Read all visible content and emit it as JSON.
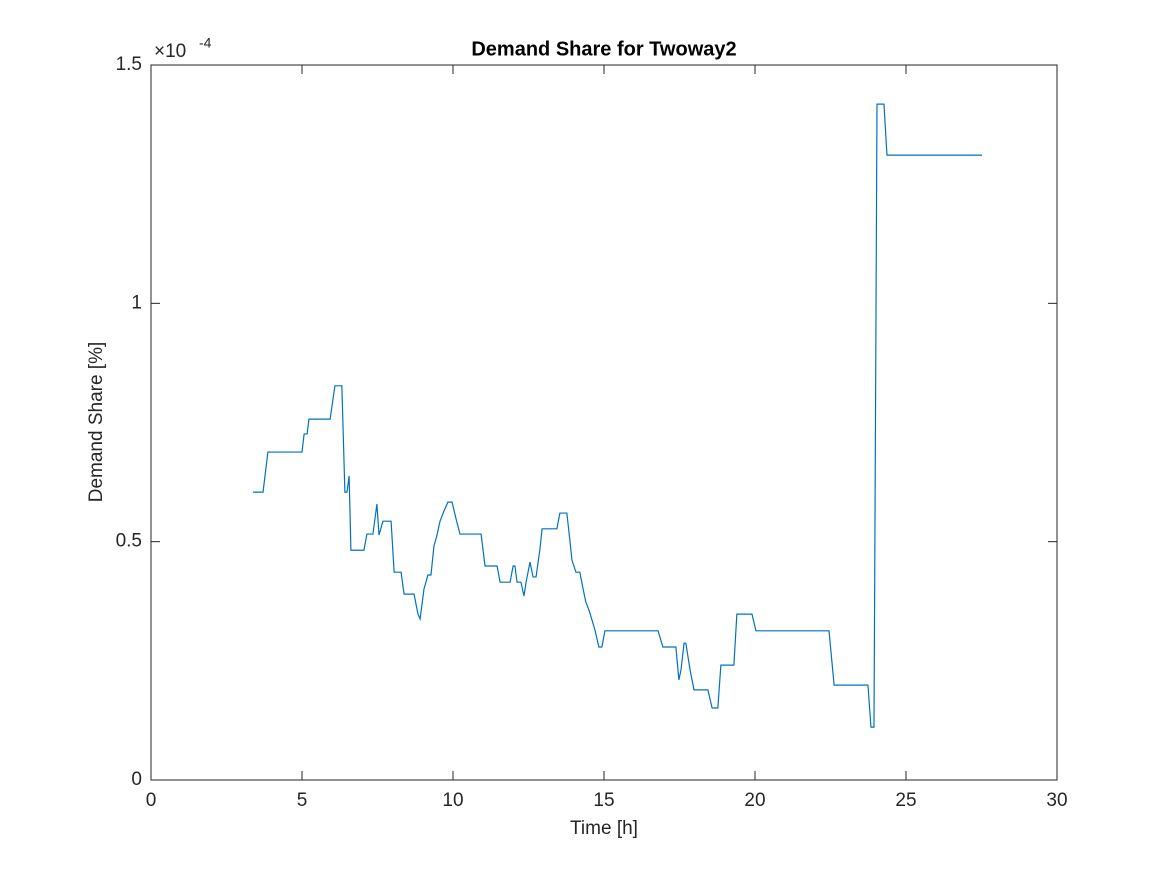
{
  "chart_data": {
    "type": "line",
    "title": "Demand Share for Twoway2",
    "x_label": "Time [h]",
    "y_label": "Demand Share [%]",
    "y_exponent": {
      "base": "×10",
      "power": "-4"
    },
    "xlim": [
      0,
      30
    ],
    "xticks": [
      0,
      5,
      10,
      15,
      20,
      25,
      30
    ],
    "ylim": [
      0,
      1.5
    ],
    "yticks": [
      0,
      0.5,
      1,
      1.5
    ],
    "grid": false,
    "series": [
      {
        "color": "#0072bd",
        "x": [
          3.38,
          3.71,
          3.87,
          5.0,
          5.07,
          5.17,
          5.23,
          5.93,
          6.09,
          6.32,
          6.42,
          6.49,
          6.56,
          6.62,
          7.05,
          7.15,
          7.35,
          7.48,
          7.55,
          7.68,
          7.95,
          8.05,
          8.28,
          8.38,
          8.71,
          8.84,
          8.91,
          9.04,
          9.17,
          9.27,
          9.37,
          9.47,
          9.57,
          9.7,
          9.83,
          9.97,
          10.1,
          10.23,
          10.93,
          11.06,
          11.46,
          11.56,
          11.89,
          11.99,
          12.05,
          12.12,
          12.25,
          12.35,
          12.42,
          12.55,
          12.65,
          12.75,
          12.88,
          12.95,
          13.44,
          13.54,
          13.77,
          13.87,
          13.94,
          14.07,
          14.2,
          14.3,
          14.4,
          14.5,
          14.6,
          14.7,
          14.83,
          14.93,
          15.03,
          16.79,
          16.95,
          17.38,
          17.48,
          17.55,
          17.65,
          17.71,
          17.85,
          17.98,
          18.44,
          18.58,
          18.77,
          18.87,
          19.3,
          19.4,
          19.9,
          20.03,
          22.45,
          22.62,
          23.74,
          23.84,
          23.94,
          24.04,
          24.27,
          24.37,
          27.52
        ],
        "values": [
          0.604,
          0.604,
          0.688,
          0.688,
          0.726,
          0.726,
          0.757,
          0.757,
          0.827,
          0.827,
          0.604,
          0.604,
          0.638,
          0.482,
          0.482,
          0.516,
          0.516,
          0.579,
          0.514,
          0.543,
          0.543,
          0.436,
          0.436,
          0.39,
          0.39,
          0.348,
          0.338,
          0.401,
          0.43,
          0.43,
          0.491,
          0.514,
          0.543,
          0.564,
          0.583,
          0.583,
          0.548,
          0.516,
          0.516,
          0.449,
          0.449,
          0.415,
          0.415,
          0.449,
          0.449,
          0.415,
          0.415,
          0.386,
          0.415,
          0.457,
          0.426,
          0.426,
          0.485,
          0.527,
          0.527,
          0.56,
          0.56,
          0.503,
          0.461,
          0.436,
          0.436,
          0.403,
          0.373,
          0.357,
          0.336,
          0.315,
          0.279,
          0.279,
          0.313,
          0.313,
          0.279,
          0.279,
          0.21,
          0.231,
          0.287,
          0.287,
          0.231,
          0.189,
          0.189,
          0.151,
          0.151,
          0.241,
          0.241,
          0.348,
          0.348,
          0.313,
          0.313,
          0.199,
          0.199,
          0.111,
          0.111,
          1.418,
          1.418,
          1.311,
          1.311
        ]
      }
    ]
  }
}
